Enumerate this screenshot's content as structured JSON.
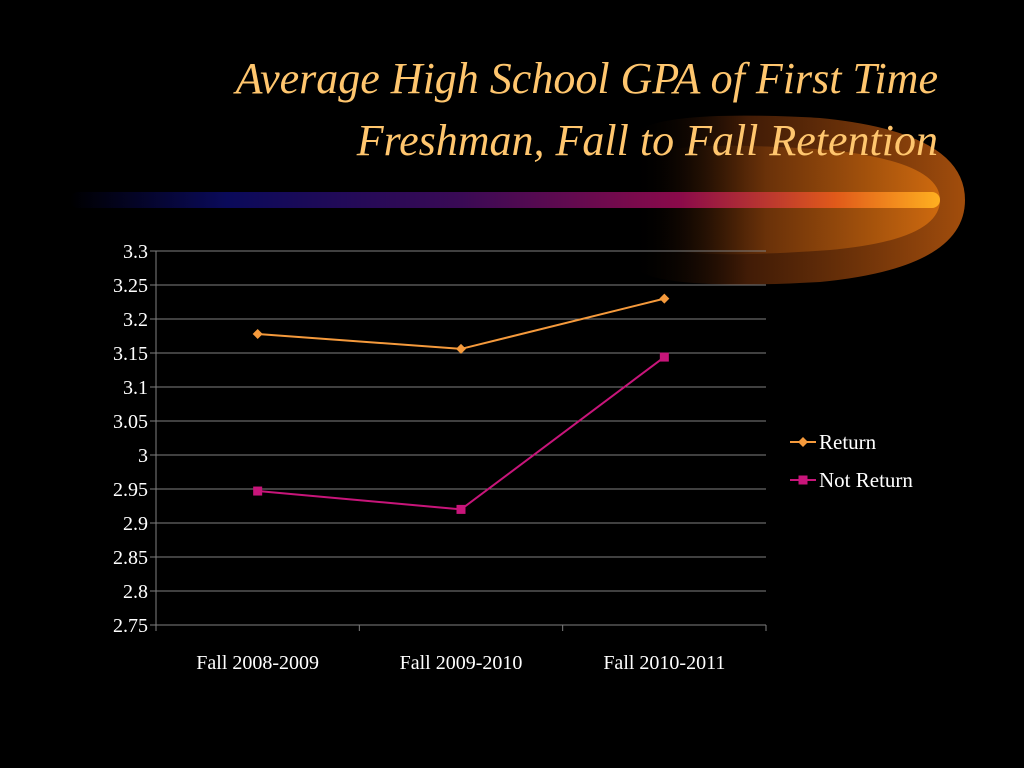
{
  "slide": {
    "title_line1": "Average High School GPA of First Time",
    "title_line2": "Freshman, Fall to Fall Retention"
  },
  "chart_data": {
    "type": "line",
    "title": "Average High School GPA of First Time Freshman, Fall to Fall Retention",
    "categories": [
      "Fall 2008-2009",
      "Fall 2009-2010",
      "Fall 2010-2011"
    ],
    "series": [
      {
        "name": "Return",
        "values": [
          3.178,
          3.156,
          3.23
        ],
        "color": "#f59a3c",
        "marker": "diamond"
      },
      {
        "name": "Not Return",
        "values": [
          2.947,
          2.92,
          3.144
        ],
        "color": "#c8157a",
        "marker": "square"
      }
    ],
    "yticks": [
      "2.75",
      "2.8",
      "2.85",
      "2.9",
      "2.95",
      "3",
      "3.05",
      "3.1",
      "3.15",
      "3.2",
      "3.25",
      "3.3"
    ],
    "ylim": [
      2.75,
      3.3
    ],
    "grid": true,
    "legend": "right",
    "xlabel": "",
    "ylabel": ""
  },
  "colors": {
    "background": "#000000",
    "title": "#ffc66e",
    "gridline": "#7f7f7f",
    "axis_text": "#ffffff"
  }
}
